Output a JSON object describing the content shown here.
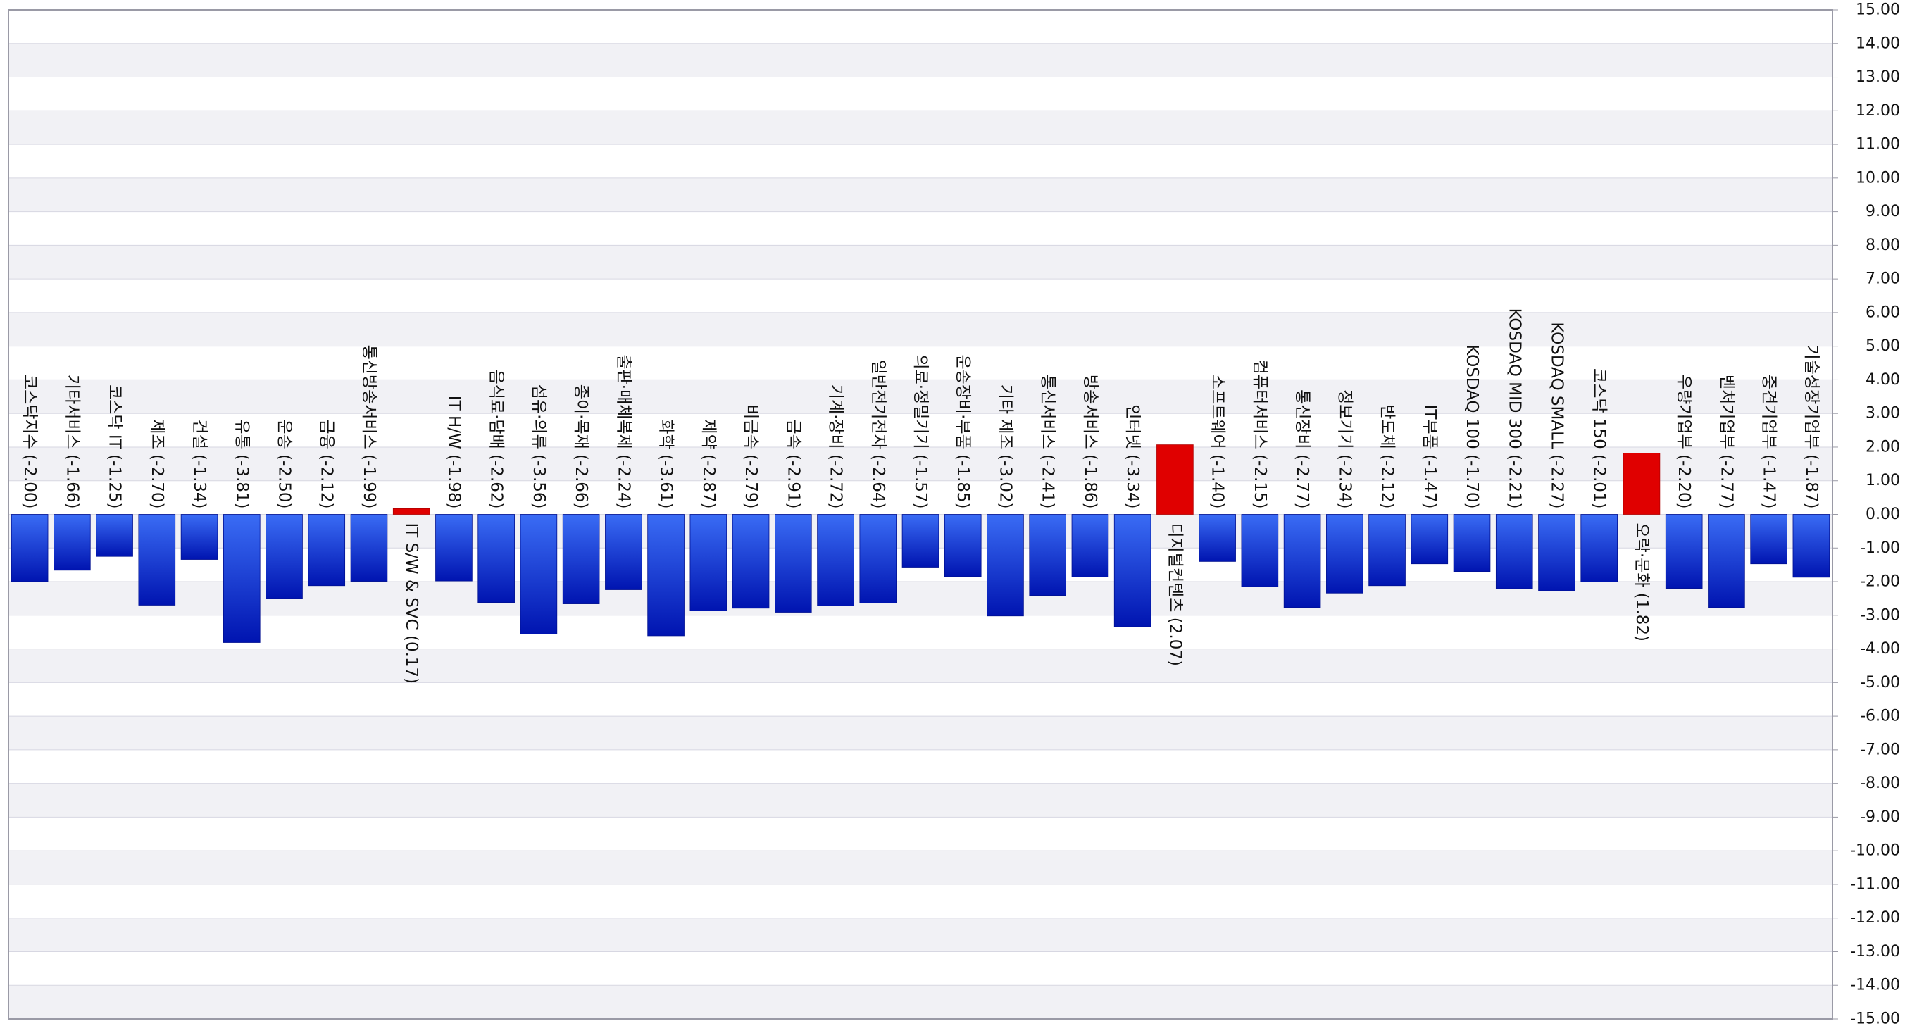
{
  "chart_data": {
    "type": "bar",
    "title": "",
    "xlabel": "",
    "ylabel": "",
    "ylim": [
      -15,
      15
    ],
    "y_axis_position": "right",
    "y_tick_step": 1,
    "tick_format": "2 decimals",
    "grid": "alternating horizontal bands",
    "legend": "none",
    "colors": {
      "negative_top": "#3a6cf5",
      "negative_bottom": "#0014b0",
      "positive": "#e00000",
      "band_light": "#ffffff",
      "band_shade": "#f1f1f5",
      "grid_line": "#d7d7e2",
      "frame": "#9a9aa6",
      "text": "#111111"
    },
    "categories": [
      "코스닥지수",
      "기타서비스",
      "코스닥 IT",
      "제조",
      "건설",
      "유통",
      "운송",
      "금융",
      "통신방송서비스",
      "IT S/W & SVC",
      "IT H/W",
      "음식료·담배",
      "섬유·의류",
      "종이·목재",
      "출판·매체복제",
      "화학",
      "제약",
      "비금속",
      "금속",
      "기계·장비",
      "일반전기전자",
      "의료·정밀기기",
      "운송장비·부품",
      "기타 제조",
      "통신서비스",
      "방송서비스",
      "인터넷",
      "디지털컨텐츠",
      "소프트웨어",
      "컴퓨터서비스",
      "통신장비",
      "정보기기",
      "반도체",
      "IT부품",
      "KOSDAQ 100",
      "KOSDAQ MID 300",
      "KOSDAQ SMALL",
      "코스닥 150",
      "오락·문화",
      "우량기업부",
      "벤처기업부",
      "중견기업부",
      "기술성장기업부"
    ],
    "values": [
      -2.0,
      -1.66,
      -1.25,
      -2.7,
      -1.34,
      -3.81,
      -2.5,
      -2.12,
      -1.99,
      0.17,
      -1.98,
      -2.62,
      -3.56,
      -2.66,
      -2.24,
      -3.61,
      -2.87,
      -2.79,
      -2.91,
      -2.72,
      -2.64,
      -1.57,
      -1.85,
      -3.02,
      -2.41,
      -1.86,
      -3.34,
      2.07,
      -1.4,
      -2.15,
      -2.77,
      -2.34,
      -2.12,
      -1.47,
      -1.7,
      -2.21,
      -2.27,
      -2.01,
      1.82,
      -2.2,
      -2.77,
      -1.47,
      -1.87
    ],
    "labels": [
      "코스닥지수 (-2.00)",
      "기타서비스 (-1.66)",
      "코스닥 IT (-1.25)",
      "제조 (-2.70)",
      "건설 (-1.34)",
      "유통 (-3.81)",
      "운송 (-2.50)",
      "금융 (-2.12)",
      "통신방송서비스 (-1.99)",
      "IT S/W & SVC (0.17)",
      "IT H/W (-1.98)",
      "음식료·담배 (-2.62)",
      "섬유·의류 (-3.56)",
      "종이·목재 (-2.66)",
      "출판·매체복제 (-2.24)",
      "화학 (-3.61)",
      "제약 (-2.87)",
      "비금속 (-2.79)",
      "금속 (-2.91)",
      "기계·장비 (-2.72)",
      "일반전기전자 (-2.64)",
      "의료·정밀기기 (-1.57)",
      "운송장비·부품 (-1.85)",
      "기타 제조 (-3.02)",
      "통신서비스 (-2.41)",
      "방송서비스 (-1.86)",
      "인터넷 (-3.34)",
      "디지털컨텐츠 (2.07)",
      "소프트웨어 (-1.40)",
      "컴퓨터서비스 (-2.15)",
      "통신장비 (-2.77)",
      "정보기기 (-2.34)",
      "반도체 (-2.12)",
      "IT부품 (-1.47)",
      "KOSDAQ 100 (-1.70)",
      "KOSDAQ MID 300 (-2.21)",
      "KOSDAQ SMALL (-2.27)",
      "코스닥 150 (-2.01)",
      "오락·문화 (1.82)",
      "우량기업부 (-2.20)",
      "벤처기업부 (-2.77)",
      "중견기업부 (-1.47)",
      "기술성장기업부 (-1.87)"
    ],
    "y_ticks": [
      "15.00",
      "14.00",
      "13.00",
      "12.00",
      "11.00",
      "10.00",
      "9.00",
      "8.00",
      "7.00",
      "6.00",
      "5.00",
      "4.00",
      "3.00",
      "2.00",
      "1.00",
      "0.00",
      "-1.00",
      "-2.00",
      "-3.00",
      "-4.00",
      "-5.00",
      "-6.00",
      "-7.00",
      "-8.00",
      "-9.00",
      "-10.00",
      "-11.00",
      "-12.00",
      "-13.00",
      "-14.00",
      "-15.00"
    ]
  }
}
